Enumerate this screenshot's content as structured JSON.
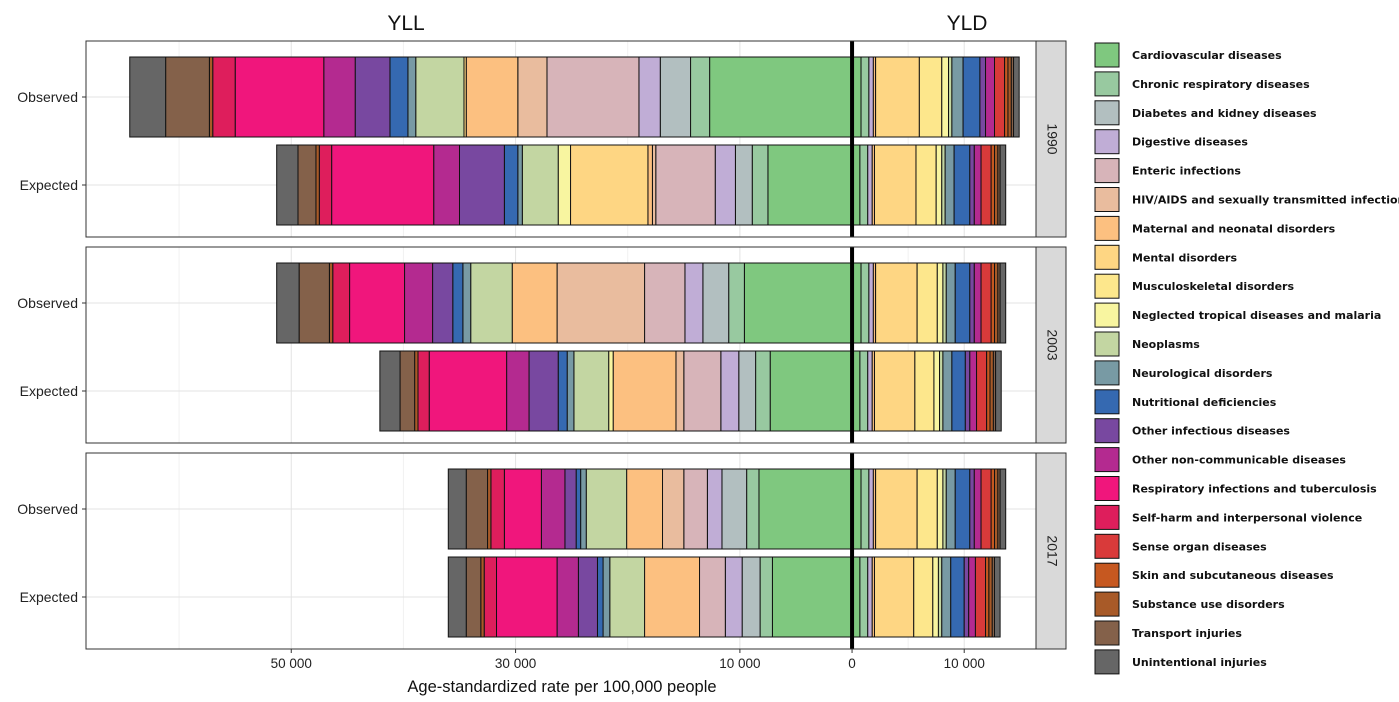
{
  "chart_data": {
    "type": "bar",
    "orientation": "horizontal",
    "stacked": true,
    "title_left": "YLL",
    "title_right": "YLD",
    "xlabel": "Age-standardized rate per 100,000 people",
    "x_ticks": [
      {
        "value": -50000,
        "label": "50 000"
      },
      {
        "value": -30000,
        "label": "30 000"
      },
      {
        "value": -10000,
        "label": "10 000"
      },
      {
        "value": 0,
        "label": "0"
      },
      {
        "value": 10000,
        "label": "10 000"
      }
    ],
    "xlim": [
      -68300,
      16400
    ],
    "grid": true,
    "legend_position": "right",
    "causes": [
      {
        "name": "Cardiovascular diseases",
        "color": "#7fc87f"
      },
      {
        "name": "Chronic respiratory diseases",
        "color": "#98c9a0"
      },
      {
        "name": "Diabetes and kidney diseases",
        "color": "#b2bfc0"
      },
      {
        "name": "Digestive diseases",
        "color": "#c0add6"
      },
      {
        "name": "Enteric infections",
        "color": "#d7b4b9"
      },
      {
        "name": "HIV/AIDS and sexually transmitted infections",
        "color": "#e9bc9e"
      },
      {
        "name": "Maternal and neonatal disorders",
        "color": "#fcc080"
      },
      {
        "name": "Mental disorders",
        "color": "#fed683"
      },
      {
        "name": "Musculoskeletal disorders",
        "color": "#fde78c"
      },
      {
        "name": "Neglected tropical diseases and malaria",
        "color": "#f8f5a0"
      },
      {
        "name": "Neoplasms",
        "color": "#c3d6a2"
      },
      {
        "name": "Neurological disorders",
        "color": "#789aa4"
      },
      {
        "name": "Nutritional deficiencies",
        "color": "#3569b1"
      },
      {
        "name": "Other infectious diseases",
        "color": "#7848a0"
      },
      {
        "name": "Other non-communicable diseases",
        "color": "#b42a90"
      },
      {
        "name": "Respiratory infections and tuberculosis",
        "color": "#f0167c"
      },
      {
        "name": "Self-harm and interpersonal violence",
        "color": "#de1e5c"
      },
      {
        "name": "Sense organ diseases",
        "color": "#d93a3a"
      },
      {
        "name": "Skin and subcutaneous diseases",
        "color": "#c65820"
      },
      {
        "name": "Substance use disorders",
        "color": "#a85a28"
      },
      {
        "name": "Transport injuries",
        "color": "#84614a"
      },
      {
        "name": "Unintentional injuries",
        "color": "#666666"
      }
    ],
    "facets": [
      {
        "year": "1990",
        "rows": [
          {
            "label": "Observed",
            "yll": [
              12700,
              1700,
              2700,
              1900,
              8200,
              2600,
              4600,
              200,
              0,
              0,
              4300,
              700,
              1600,
              3100,
              2800,
              7900,
              2000,
              0,
              0,
              300,
              3900,
              3200
            ],
            "yld": [
              800,
              700,
              0,
              400,
              0,
              0,
              200,
              3900,
              2000,
              600,
              300,
              1000,
              1500,
              500,
              800,
              0,
              0,
              900,
              300,
              300,
              200,
              500
            ]
          },
          {
            "label": "Expected",
            "yll": [
              7500,
              1400,
              1500,
              1800,
              5300,
              300,
              400,
              6900,
              0,
              1100,
              3200,
              400,
              1200,
              4000,
              2300,
              9100,
              1100,
              0,
              0,
              300,
              1600,
              1900
            ],
            "yld": [
              700,
              700,
              0,
              400,
              0,
              0,
              200,
              3700,
              1800,
              500,
              300,
              800,
              1400,
              400,
              600,
              0,
              0,
              900,
              300,
              300,
              200,
              500
            ]
          }
        ]
      },
      {
        "year": "2003",
        "rows": [
          {
            "label": "Observed",
            "yll": [
              9600,
              1400,
              2300,
              1600,
              3600,
              7800,
              4000,
              0,
              0,
              0,
              3700,
              700,
              900,
              1800,
              2500,
              4900,
              1500,
              0,
              0,
              300,
              2700,
              2000
            ],
            "yld": [
              800,
              700,
              0,
              400,
              0,
              0,
              200,
              3700,
              1800,
              500,
              300,
              800,
              1300,
              400,
              600,
              0,
              0,
              900,
              300,
              300,
              200,
              500
            ]
          },
          {
            "label": "Expected",
            "yll": [
              7300,
              1300,
              1500,
              1600,
              3300,
              700,
              5600,
              0,
              0,
              400,
              3100,
              600,
              800,
              2600,
              2000,
              6900,
              1000,
              0,
              0,
              300,
              1300,
              1800
            ],
            "yld": [
              700,
              700,
              0,
              400,
              0,
              0,
              200,
              3600,
              1700,
              500,
              300,
              800,
              1200,
              400,
              600,
              0,
              0,
              900,
              300,
              300,
              200,
              500
            ]
          }
        ]
      },
      {
        "year": "2017",
        "rows": [
          {
            "label": "Observed",
            "yll": [
              8300,
              1100,
              2200,
              1300,
              2100,
              1900,
              3200,
              0,
              0,
              0,
              3600,
              500,
              400,
              1000,
              2100,
              3300,
              1200,
              0,
              0,
              300,
              1900,
              1600
            ],
            "yld": [
              800,
              700,
              0,
              400,
              0,
              0,
              200,
              3700,
              1800,
              500,
              300,
              800,
              1300,
              400,
              600,
              0,
              0,
              900,
              300,
              300,
              200,
              500
            ]
          },
          {
            "label": "Expected",
            "yll": [
              7100,
              1100,
              1600,
              1500,
              2300,
              0,
              4900,
              0,
              0,
              0,
              3100,
              600,
              500,
              1700,
              1900,
              5400,
              1100,
              0,
              0,
              300,
              1300,
              1600
            ],
            "yld": [
              700,
              700,
              0,
              400,
              0,
              0,
              200,
              3500,
              1700,
              500,
              300,
              800,
              1200,
              400,
              600,
              0,
              0,
              900,
              300,
              300,
              200,
              500
            ]
          }
        ]
      }
    ]
  }
}
